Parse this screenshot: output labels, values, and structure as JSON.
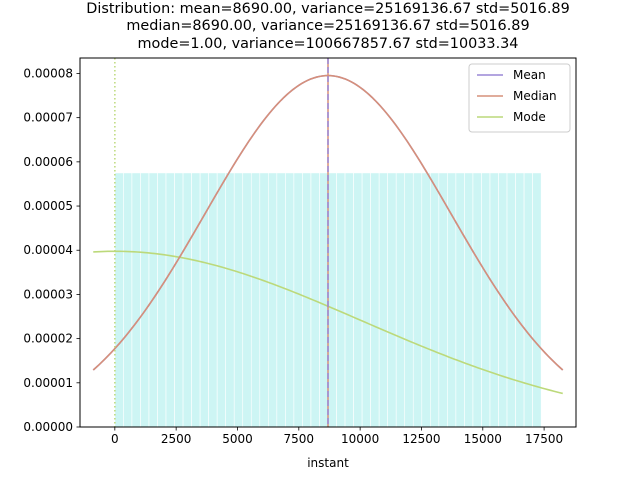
{
  "chart_data": {
    "type": "line",
    "title_lines": [
      "Distribution: mean=8690.00, variance=25169136.67 std=5016.89",
      "median=8690.00, variance=25169136.67 std=5016.89",
      "mode=1.00, variance=100667857.67 std=10033.34"
    ],
    "xlabel": "instant",
    "ylabel": "",
    "xlim": [
      -1420,
      18800
    ],
    "ylim": [
      0,
      8.35e-05
    ],
    "x_ticks": [
      0,
      2500,
      5000,
      7500,
      10000,
      12500,
      15000,
      17500
    ],
    "x_tick_labels": [
      "0",
      "2500",
      "5000",
      "7500",
      "10000",
      "12500",
      "15000",
      "17500"
    ],
    "y_ticks": [
      0,
      1e-05,
      2e-05,
      3e-05,
      4e-05,
      5e-05,
      6e-05,
      7e-05,
      8e-05
    ],
    "y_tick_labels": [
      "0.00000",
      "0.00001",
      "0.00002",
      "0.00003",
      "0.00004",
      "0.00005",
      "0.00006",
      "0.00007",
      "0.00008"
    ],
    "histogram": {
      "range": [
        1,
        17379
      ],
      "bins": 50,
      "density": 5.75e-05,
      "color": "#cdf5f4"
    },
    "series": [
      {
        "name": "Mean",
        "mu": 8690.0,
        "sigma": 5016.89,
        "x_range": [
          -880,
          18260
        ],
        "color": "#9a87d6",
        "vline": 8690.0,
        "vline_style": "dashed"
      },
      {
        "name": "Median",
        "mu": 8690.0,
        "sigma": 5016.89,
        "x_range": [
          -880,
          18260
        ],
        "color": "#d6907a",
        "vline": 8690.0,
        "vline_style": "solid"
      },
      {
        "name": "Mode",
        "mu": 1.0,
        "sigma": 10033.34,
        "x_range": [
          -880,
          18260
        ],
        "color": "#bcd97a",
        "vline": 1.0,
        "vline_style": "dotted"
      }
    ],
    "legend": {
      "placement": "top-right",
      "entries": [
        "Mean",
        "Median",
        "Mode"
      ]
    }
  }
}
